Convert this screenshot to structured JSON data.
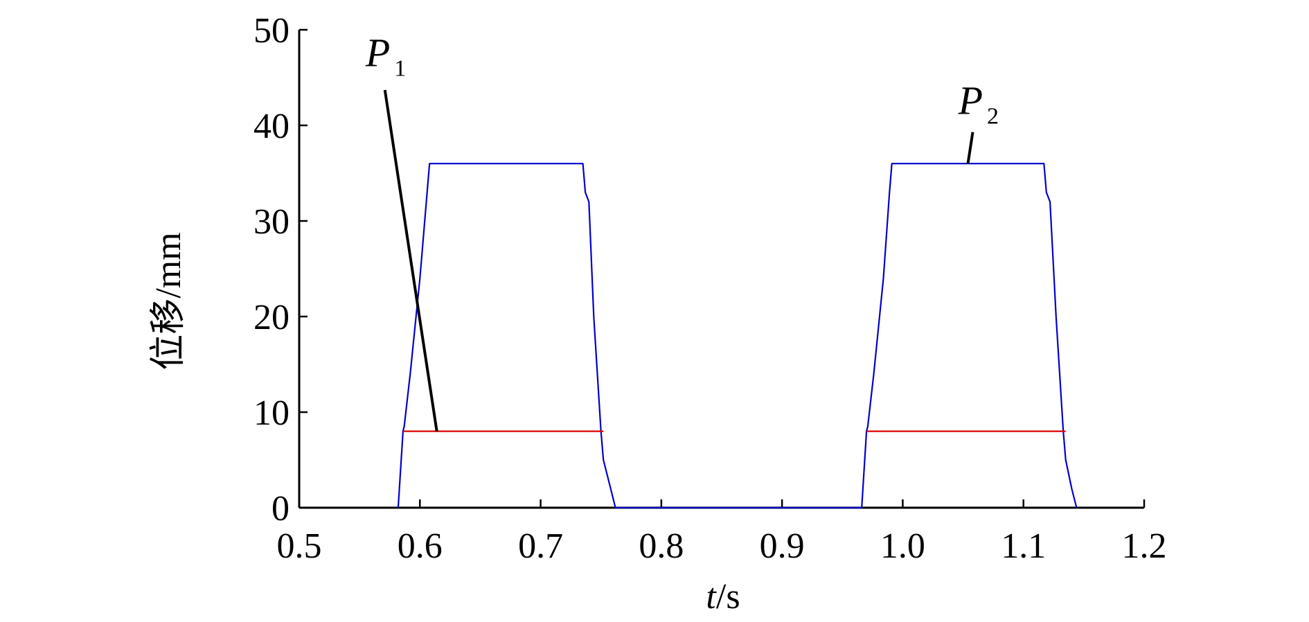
{
  "chart_data": {
    "type": "line",
    "xlabel_var": "t",
    "xlabel_unit": "/s",
    "ylabel": "位移/mm",
    "xlim": [
      0.5,
      1.2
    ],
    "ylim": [
      0,
      50
    ],
    "x_ticks": [
      "0.5",
      "0.6",
      "0.7",
      "0.8",
      "0.9",
      "1.0",
      "1.1",
      "1.2"
    ],
    "y_ticks": [
      "0",
      "10",
      "20",
      "30",
      "40",
      "50"
    ],
    "grid": false,
    "series": [
      {
        "color": "#0000cc",
        "x": [
          0.582,
          0.586,
          0.587,
          0.592,
          0.6,
          0.606,
          0.608,
          0.735,
          0.737,
          0.74,
          0.744,
          0.75,
          0.752,
          0.758,
          0.762,
          0.966,
          0.97,
          0.971,
          0.976,
          0.984,
          0.989,
          0.991,
          1.117,
          1.119,
          1.122,
          1.127,
          1.133,
          1.135,
          1.14,
          1.144
        ],
        "y": [
          0,
          8,
          8.5,
          14,
          24,
          33,
          36,
          36,
          33,
          32,
          20,
          8,
          5,
          2,
          0,
          0,
          8,
          8.5,
          14,
          24,
          33,
          36,
          36,
          33,
          32,
          20,
          8,
          5,
          2,
          0
        ]
      },
      {
        "color": "#dd0000",
        "segments": [
          {
            "x": [
              0.586,
              0.752
            ],
            "y": [
              8,
              8
            ]
          },
          {
            "x": [
              0.97,
              1.135
            ],
            "y": [
              8,
              8
            ]
          }
        ]
      }
    ],
    "annotations": [
      {
        "name": "P1",
        "letter": "P",
        "sub": "1",
        "text_x": 0.555,
        "text_y": 46.2,
        "pointer": [
          [
            0.571,
            43.7
          ],
          [
            0.614,
            8
          ]
        ]
      },
      {
        "name": "P2",
        "letter": "P",
        "sub": "2",
        "text_x": 1.046,
        "text_y": 41.2,
        "pointer": [
          [
            1.058,
            39.3
          ],
          [
            1.054,
            36
          ]
        ]
      }
    ]
  }
}
